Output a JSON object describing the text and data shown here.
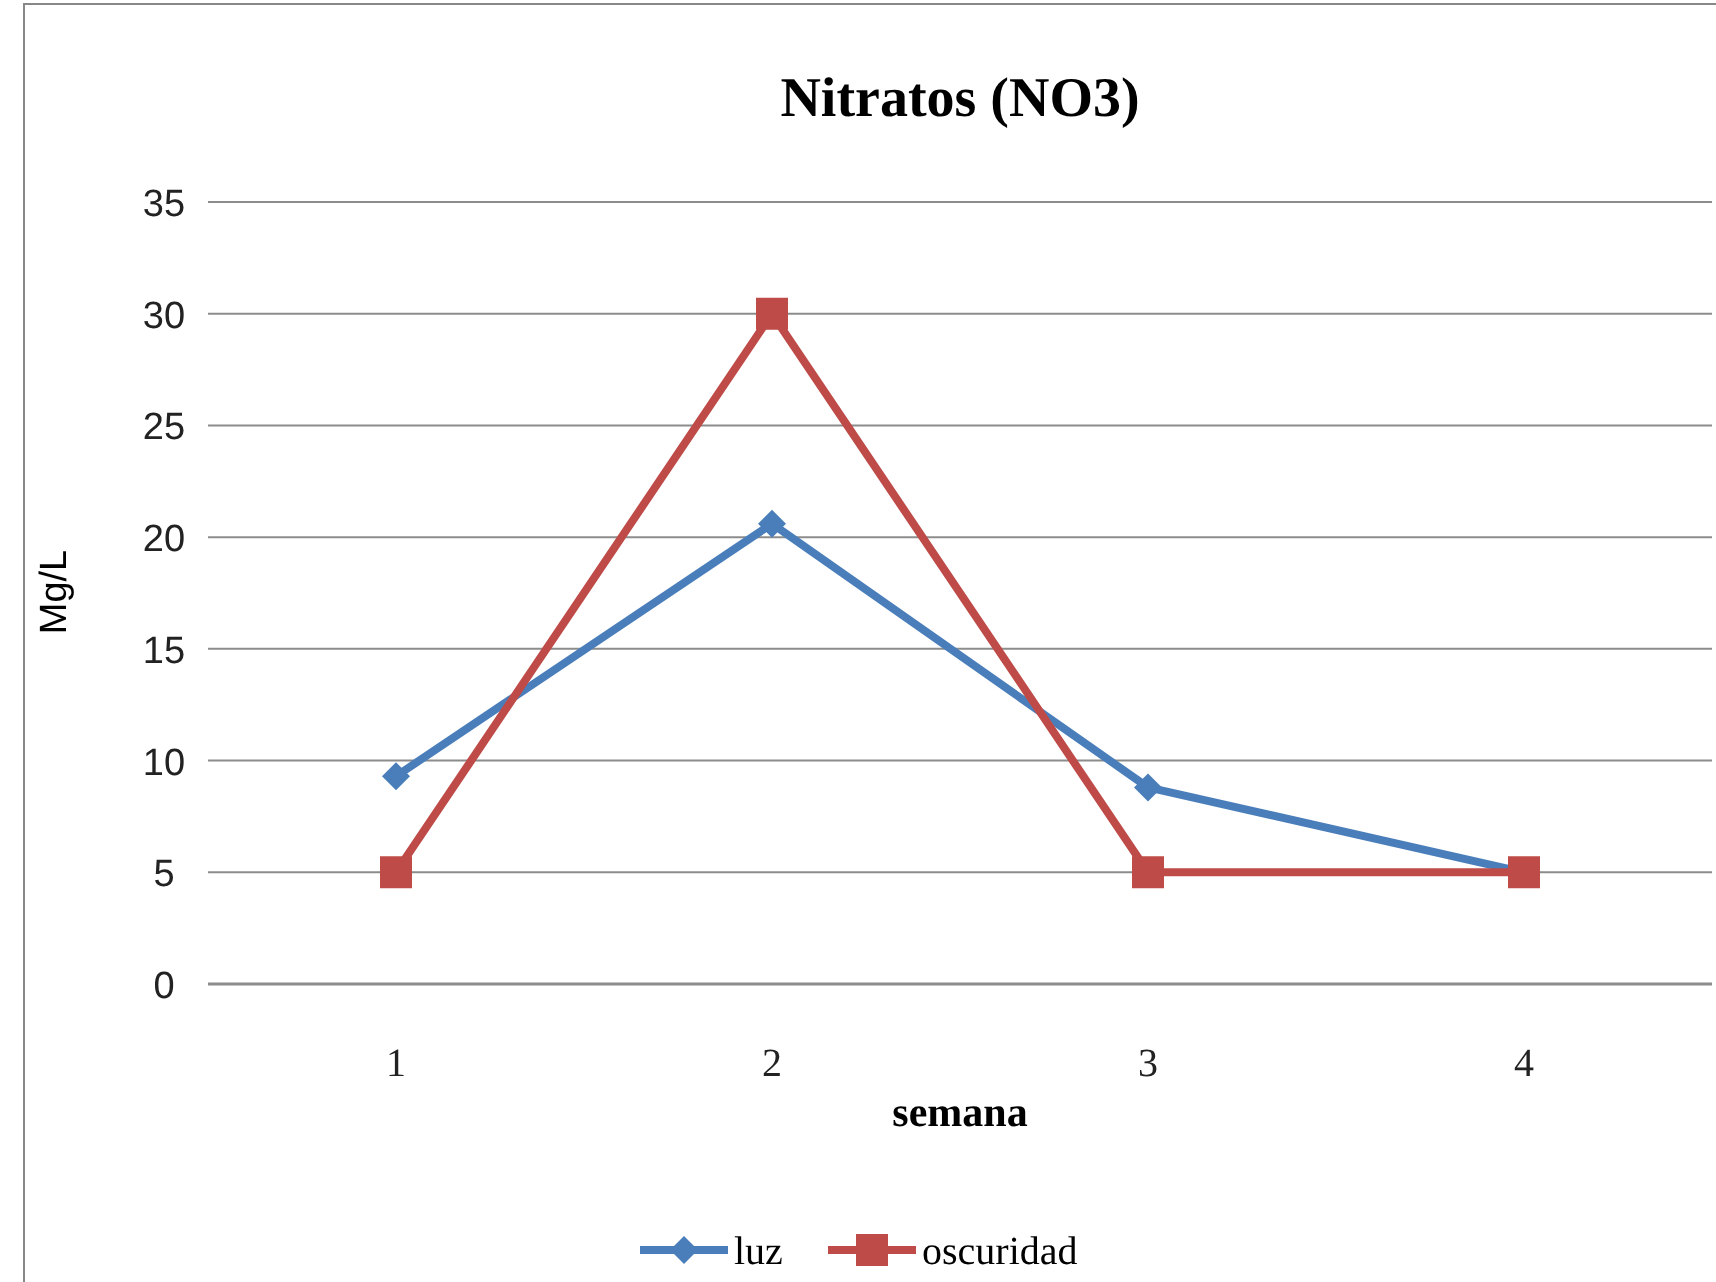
{
  "chart_data": {
    "type": "line",
    "title": "Nitratos (NO3)",
    "xlabel": "semana",
    "ylabel": "Mg/L",
    "categories": [
      "1",
      "2",
      "3",
      "4"
    ],
    "series": [
      {
        "name": "luz",
        "color": "#4a7ebb",
        "values": [
          9.3,
          20.6,
          8.8,
          5
        ],
        "marker": "diamond"
      },
      {
        "name": "oscuridad",
        "color": "#be4b48",
        "values": [
          5,
          30,
          5,
          5
        ],
        "marker": "square"
      }
    ],
    "ylim": [
      0,
      35
    ],
    "yticks": [
      0,
      5,
      10,
      15,
      20,
      25,
      30,
      35
    ],
    "grid": "y",
    "legend": "bottom",
    "line_style": "solid"
  }
}
